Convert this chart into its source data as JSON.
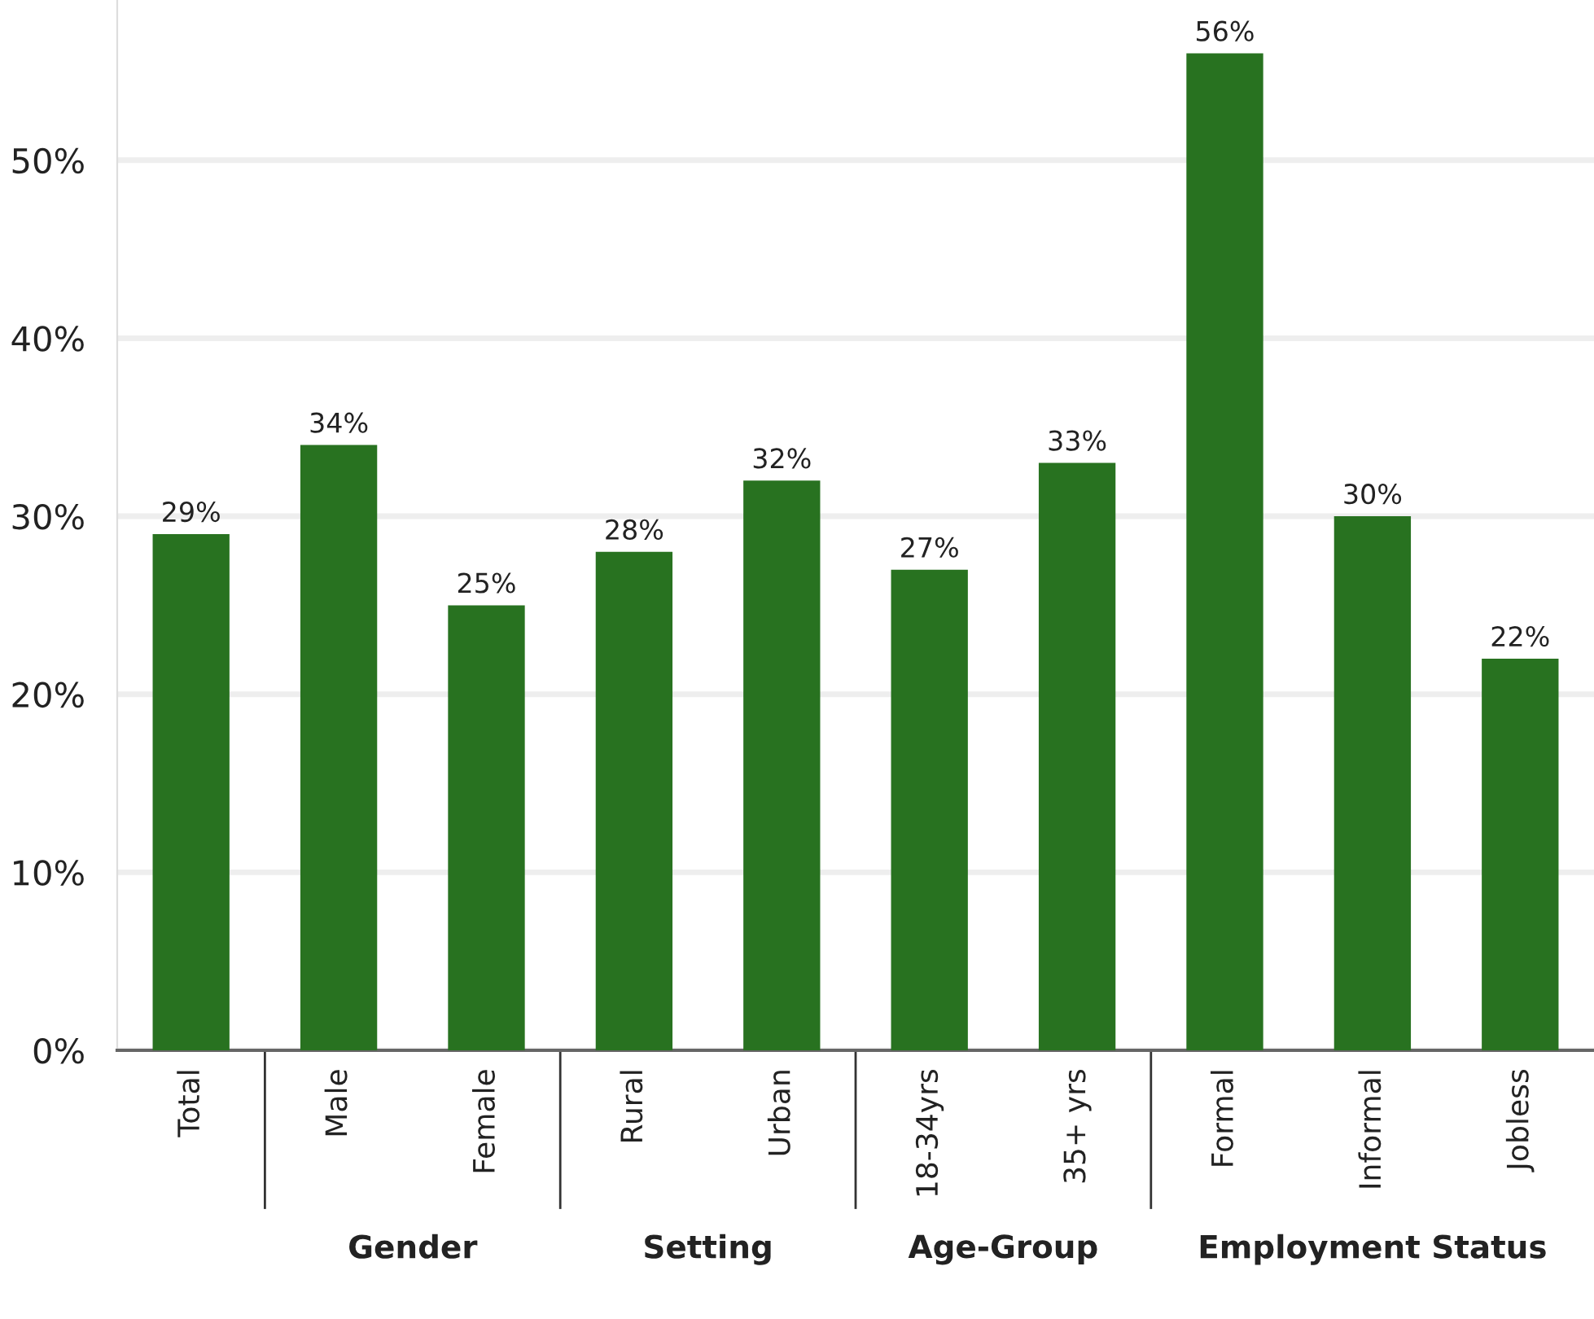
{
  "chart_data": {
    "type": "bar",
    "categories": [
      "Total",
      "Male",
      "Female",
      "Rural",
      "Urban",
      "18-34yrs",
      "35+ yrs",
      "Formal",
      "Informal",
      "Jobless"
    ],
    "values": [
      29,
      34,
      25,
      28,
      32,
      27,
      33,
      56,
      30,
      22
    ],
    "value_labels": [
      "29%",
      "34%",
      "25%",
      "28%",
      "32%",
      "27%",
      "33%",
      "56%",
      "30%",
      "22%"
    ],
    "color": "#287220",
    "ylim": [
      0,
      59
    ],
    "yticks": [
      {
        "value": 0,
        "label": "0%"
      },
      {
        "value": 10,
        "label": "10%"
      },
      {
        "value": 20,
        "label": "20%"
      },
      {
        "value": 30,
        "label": "30%"
      },
      {
        "value": 40,
        "label": "40%"
      },
      {
        "value": 50,
        "label": "50%"
      }
    ],
    "grid": "y",
    "annotations": [
      "Gender",
      "Setting",
      "Age-Group",
      "Employment Status"
    ]
  }
}
